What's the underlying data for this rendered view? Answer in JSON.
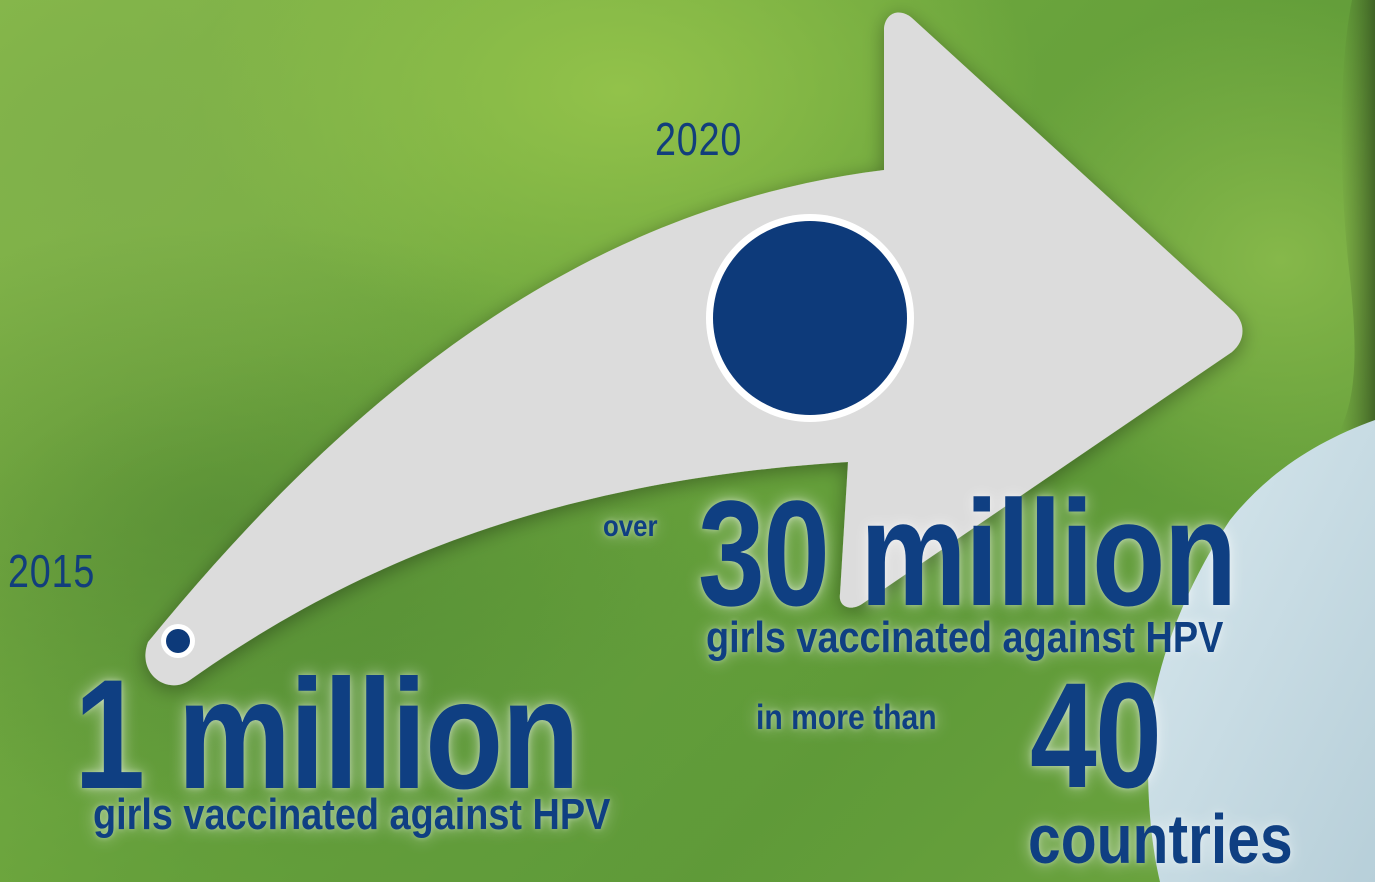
{
  "timeline": {
    "start": {
      "year": "2015",
      "figure": "1 million",
      "caption": "girls vaccinated against HPV"
    },
    "end": {
      "year": "2020",
      "prefix": "over",
      "figure": "30 million",
      "caption": "girls vaccinated against HPV",
      "country_prefix": "in more than",
      "country_count": "40",
      "country_label": "countries"
    }
  },
  "colors": {
    "text_blue": "#0f3f82",
    "arrow_fill": "#dcdcdc",
    "dot_blue": "#0d3a7a",
    "background_green": "#74aa42"
  },
  "icons": {
    "arrow": "curved-arrow-icon",
    "start_marker": "small-dot-icon",
    "end_marker": "large-dot-icon"
  }
}
